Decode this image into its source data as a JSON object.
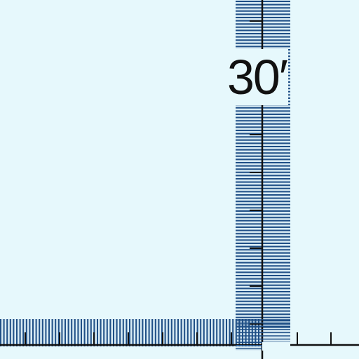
{
  "map": {
    "graticule_label": "30′"
  },
  "colors": {
    "water": "#e6f8fc",
    "band_blue": "#1f4f86",
    "band_light": "#bcd3e6",
    "neatline": "#111111"
  }
}
